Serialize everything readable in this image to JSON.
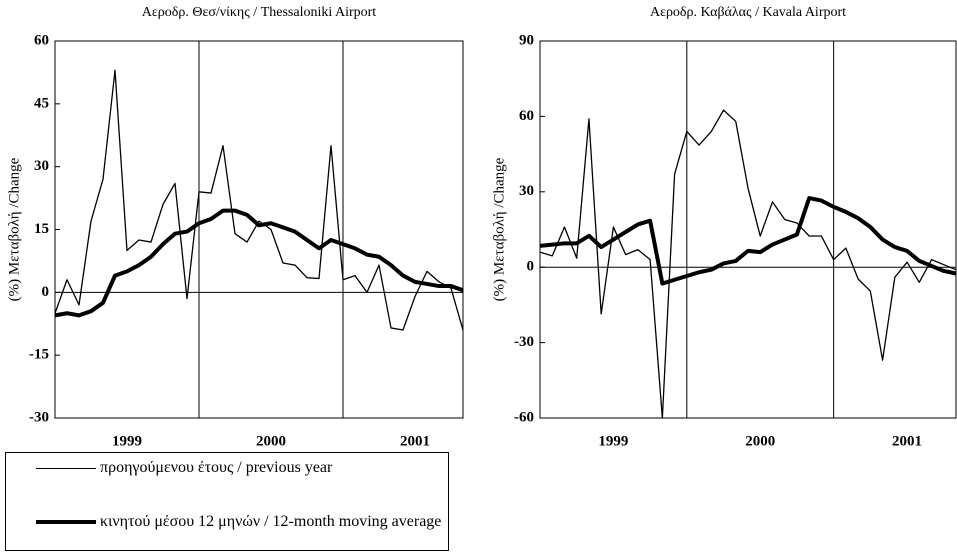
{
  "chart_data": [
    {
      "type": "line",
      "title": "Αεροδρ. Θεσ/νίκης / Thessaloniki Airport",
      "y_label": "(%) Μεταβολή /Change",
      "categories": [
        null,
        null,
        null,
        null,
        null,
        null,
        "1999",
        null,
        null,
        null,
        null,
        null,
        null,
        null,
        null,
        null,
        null,
        null,
        "2000",
        null,
        null,
        null,
        null,
        null,
        null,
        null,
        null,
        null,
        null,
        null,
        "2001",
        null,
        null,
        null,
        null
      ],
      "series": [
        {
          "name": "προηγούμενου έτους / previous year",
          "color": "#000000",
          "width": 1.3,
          "values": [
            -5,
            3,
            -3,
            17,
            27,
            53,
            10,
            12.5,
            12,
            21,
            26,
            -1.5,
            24,
            23.7,
            35,
            14,
            12,
            17,
            15,
            7,
            6.5,
            3.5,
            3.3,
            35,
            3,
            4,
            0,
            6.5,
            -8.5,
            -9,
            -1,
            5,
            2.5,
            1,
            -9
          ]
        },
        {
          "name": "κινητού μέσου 12 μηνών / 12-month moving average",
          "color": "#000000",
          "width": 4,
          "values": [
            -5.5,
            -5,
            -5.5,
            -4.5,
            -2.5,
            4,
            5,
            6.5,
            8.5,
            11.5,
            14,
            14.5,
            16.5,
            17.5,
            19.5,
            19.5,
            18.5,
            16,
            16.5,
            15.5,
            14.5,
            12.5,
            10.5,
            12.5,
            11.5,
            10.5,
            9,
            8.5,
            6.5,
            4,
            2.5,
            2,
            1.5,
            1.5,
            0.5
          ]
        }
      ],
      "ylim": [
        -30,
        60
      ],
      "yticks": [
        60,
        45,
        30,
        15,
        0,
        -15,
        -30
      ]
    },
    {
      "type": "line",
      "title": "Αεροδρ. Καβάλας / Kavala Airport",
      "y_label": "(%) Μεταβολή /Change",
      "categories": [
        null,
        null,
        null,
        null,
        null,
        null,
        "1999",
        null,
        null,
        null,
        null,
        null,
        null,
        null,
        null,
        null,
        null,
        null,
        "2000",
        null,
        null,
        null,
        null,
        null,
        null,
        null,
        null,
        null,
        null,
        null,
        "2001",
        null,
        null,
        null,
        null
      ],
      "series": [
        {
          "name": "προηγούμενου έτους / previous year",
          "color": "#000000",
          "width": 1.3,
          "values": [
            6,
            4.5,
            16,
            3.6,
            59,
            -18.6,
            16,
            5,
            7,
            3,
            -60,
            37,
            54,
            48.6,
            54,
            62.5,
            58,
            31.5,
            12.4,
            26,
            19,
            17.6,
            12.4,
            12.4,
            3,
            7.6,
            -4.7,
            -9.5,
            -37,
            -4,
            2,
            -6,
            3,
            1,
            -1
          ]
        },
        {
          "name": "κινητού μέσου 12 μηνών / 12-month moving average",
          "color": "#000000",
          "width": 4,
          "values": [
            8.5,
            9,
            9.5,
            9.5,
            12.5,
            8,
            11,
            14,
            17,
            18.5,
            -6.5,
            -5,
            -3.5,
            -2,
            -1,
            1.5,
            2.5,
            6.5,
            6,
            9,
            11,
            13,
            27.5,
            26.5,
            24,
            22,
            19.5,
            16,
            11,
            8,
            6.5,
            2.5,
            0.5,
            -1.5,
            -2.5
          ]
        }
      ],
      "ylim": [
        -60,
        90
      ],
      "yticks": [
        90,
        60,
        30,
        0,
        -30,
        -60
      ]
    }
  ]
}
